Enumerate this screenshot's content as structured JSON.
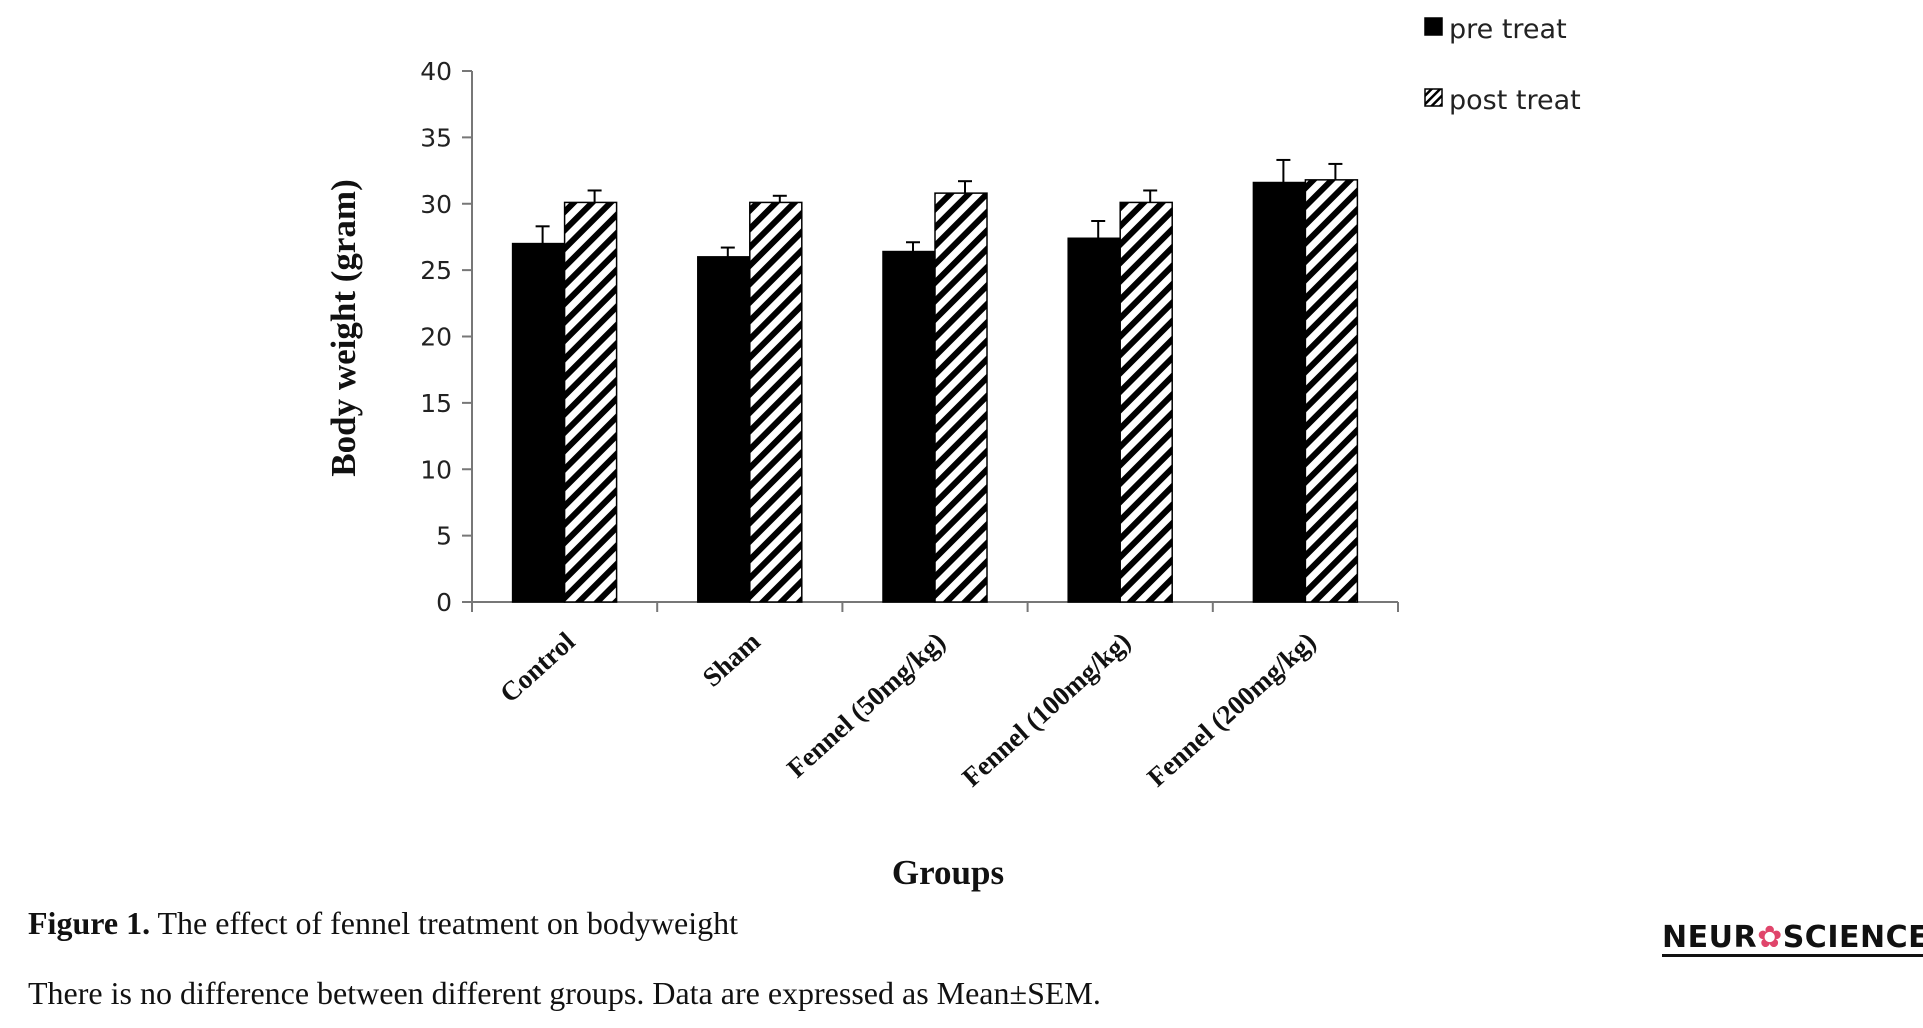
{
  "chart_data": {
    "type": "bar",
    "categories": [
      "Control",
      "Sham",
      "Fennel (50mg/kg)",
      "Fennel (100mg/kg)",
      "Fennel (200mg/kg)"
    ],
    "series": [
      {
        "name": "pre treat",
        "values": [
          27.0,
          26.0,
          26.4,
          27.4,
          31.6
        ],
        "errors": [
          1.3,
          0.7,
          0.7,
          1.3,
          1.7
        ],
        "color": "#000000",
        "pattern": "solid"
      },
      {
        "name": "post treat",
        "values": [
          30.1,
          30.1,
          30.8,
          30.1,
          31.8
        ],
        "errors": [
          0.9,
          0.5,
          0.9,
          0.9,
          1.2
        ],
        "color": "#000000",
        "pattern": "diagonal-hatch"
      }
    ],
    "xlabel": "Groups",
    "ylabel": "Body weight  (gram)",
    "ylim": [
      0,
      40
    ],
    "yticks": [
      "0",
      "5",
      "10",
      "15",
      "20",
      "25",
      "30",
      "35",
      "40"
    ],
    "grid": false,
    "legend": "top-right"
  },
  "caption": {
    "label": "Figure 1.",
    "text": " The effect of fennel treatment on bodyweight"
  },
  "note": "There is no difference between different groups. Data are expressed as Mean±SEM.",
  "logo": {
    "text_a": "NEUR",
    "text_b": "SCIENCE"
  }
}
